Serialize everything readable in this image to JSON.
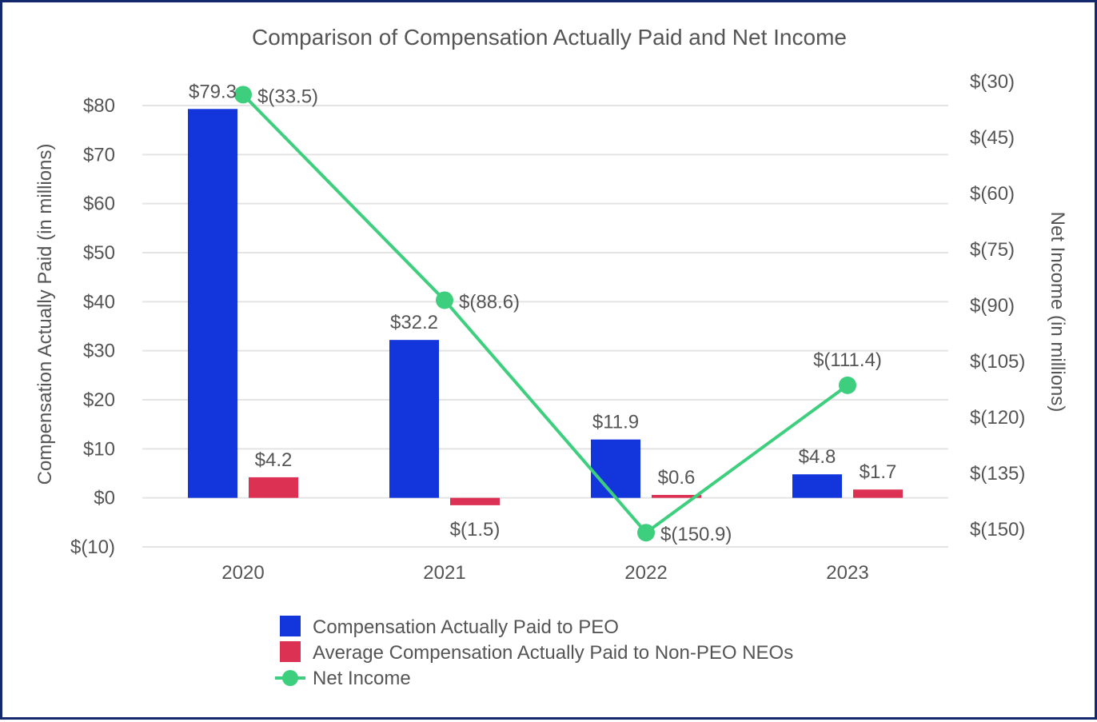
{
  "chart_data": {
    "type": "bar",
    "title": "Comparison of Compensation Actually Paid and Net Income",
    "categories": [
      "2020",
      "2021",
      "2022",
      "2023"
    ],
    "ylabel": "Compensation Actually Paid (in millions)",
    "y2label": "Net Income (in millions)",
    "ylim": [
      -10,
      80
    ],
    "y2lim": [
      -150,
      -30
    ],
    "y_ticks": [
      80,
      70,
      60,
      50,
      40,
      30,
      20,
      10,
      0,
      -10
    ],
    "y_tick_labels": [
      "$80",
      "$70",
      "$60",
      "$50",
      "$40",
      "$30",
      "$20",
      "$10",
      "$0",
      "$(10)"
    ],
    "y2_ticks": [
      -30,
      -45,
      -60,
      -75,
      -90,
      -105,
      -120,
      -135,
      -150
    ],
    "y2_tick_labels": [
      "$(30)",
      "$(45)",
      "$(60)",
      "$(75)",
      "$(90)",
      "$(105)",
      "$(120)",
      "$(135)",
      "$(150)"
    ],
    "series": [
      {
        "name": "Compensation Actually Paid to PEO",
        "type": "bar",
        "axis": "left",
        "color": "#1236dc",
        "values": [
          79.3,
          32.2,
          11.9,
          4.8
        ],
        "labels": [
          "$79.3",
          "$32.2",
          "$11.9",
          "$4.8"
        ]
      },
      {
        "name": "Average Compensation Actually Paid to Non-PEO NEOs",
        "type": "bar",
        "axis": "left",
        "color": "#dd3154",
        "values": [
          4.2,
          -1.5,
          0.6,
          1.7
        ],
        "labels": [
          "$4.2",
          "$(1.5)",
          "$0.6",
          "$1.7"
        ]
      },
      {
        "name": "Net Income",
        "type": "line",
        "axis": "right",
        "color": "#3ecf7e",
        "values": [
          -33.5,
          -88.6,
          -150.9,
          -111.4
        ],
        "labels": [
          "$(33.5)",
          "$(88.6)",
          "$(150.9)",
          "$(111.4)"
        ]
      }
    ],
    "legend_position": "bottom"
  }
}
